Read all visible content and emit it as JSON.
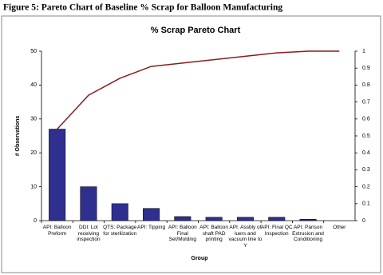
{
  "chart_data": {
    "type": "pareto",
    "caption": "Figure 5: Pareto Chart of Baseline % Scrap for Balloon Manufacturing",
    "title": "% Scrap Pareto Chart",
    "x_label": "Group",
    "y_label": "# Observations",
    "categories": [
      "API: Balloon Preform",
      "DDI: Lot receiving inspection",
      "QTS: Package for sterilization",
      "API: Tipping",
      "API: Balloon Final Set/Molding",
      "API: Balloon shaft PAD printing",
      "API: Assbly of luers and vacuum line to Y",
      "API: Final QC Inspection",
      "API: Parison Extrusion and Conditioning",
      "Other"
    ],
    "series": [
      {
        "type": "bar",
        "color": "#2e2f8f",
        "values": [
          27,
          10,
          5,
          3.6,
          1.2,
          1,
          1,
          1,
          0.4,
          0
        ]
      },
      {
        "type": "line",
        "axis": "y2",
        "color": "#8b1c1c",
        "values": [
          0.54,
          0.74,
          0.84,
          0.91,
          0.93,
          0.95,
          0.97,
          0.99,
          1,
          1
        ]
      }
    ],
    "ylim": [
      0,
      50
    ],
    "yticks": [
      0,
      10,
      20,
      30,
      40,
      50
    ],
    "y2lim": [
      0,
      1
    ],
    "y2ticks": [
      0,
      0.1,
      0.2,
      0.3,
      0.4,
      0.5,
      0.6,
      0.7,
      0.8,
      0.9,
      1
    ],
    "grid": false
  }
}
